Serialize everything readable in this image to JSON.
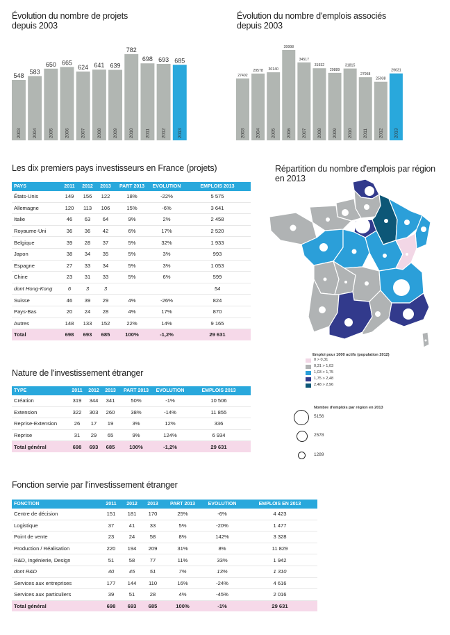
{
  "colors": {
    "bar": "#b1b6b2",
    "bar_highlight": "#29a8dc",
    "header": "#29a8dc",
    "total_row": "#f6d9e9",
    "map_cat0": "#f2d7e6",
    "map_cat1": "#b0b3b4",
    "map_cat2": "#2b9fd9",
    "map_cat3": "#323a8c",
    "map_cat4": "#0d5777"
  },
  "chart_data": [
    {
      "type": "bar",
      "title": "Évolution du nombre de projets depuis 2003",
      "categories": [
        "2003",
        "2004",
        "2005",
        "2006",
        "2007",
        "2008",
        "2009",
        "2010",
        "2011",
        "2012",
        "2013"
      ],
      "values": [
        548,
        583,
        650,
        665,
        624,
        641,
        639,
        782,
        698,
        693,
        685
      ],
      "labels": [
        "548",
        "583",
        "650",
        "665",
        "624",
        "641",
        "639",
        "782",
        "698",
        "693",
        "685"
      ],
      "highlight": "2013",
      "ylim": [
        0,
        800
      ]
    },
    {
      "type": "bar",
      "title": "Évolution du nombre d'emplois associés depuis 2003",
      "categories": [
        "2003",
        "2004",
        "2005",
        "2006",
        "2007",
        "2008",
        "2009",
        "2010",
        "2011",
        "2012",
        "2013"
      ],
      "values": [
        27402,
        29578,
        30140,
        39998,
        34517,
        31932,
        29889,
        31815,
        27958,
        25938,
        29631
      ],
      "labels": [
        "27402",
        "29578",
        "30140",
        "39998",
        "34517",
        "31932",
        "29889",
        "31815",
        "27958",
        "25938",
        "29631"
      ],
      "highlight": "2013",
      "ylim": [
        0,
        40000
      ]
    }
  ],
  "charts_titles": {
    "projects": [
      "Évolution du nombre de projets",
      "depuis 2003"
    ],
    "jobs": [
      "Évolution du nombre d'emplois associés",
      "depuis 2003"
    ]
  },
  "countries": {
    "title": "Les dix premiers pays investisseurs en France (projets)",
    "headers": [
      "PAYS",
      "2011",
      "2012",
      "2013",
      "PART 2013",
      "EVOLUTION",
      "EMPLOIS 2013"
    ],
    "rows": [
      [
        "États-Unis",
        "149",
        "156",
        "122",
        "18%",
        "-22%",
        "5 575"
      ],
      [
        "Allemagne",
        "120",
        "113",
        "106",
        "15%",
        "-6%",
        "3 641"
      ],
      [
        "Italie",
        "46",
        "63",
        "64",
        "9%",
        "2%",
        "2 458"
      ],
      [
        "Royaume-Uni",
        "36",
        "36",
        "42",
        "6%",
        "17%",
        "2 520"
      ],
      [
        "Belgique",
        "39",
        "28",
        "37",
        "5%",
        "32%",
        "1 933"
      ],
      [
        "Japon",
        "38",
        "34",
        "35",
        "5%",
        "3%",
        "993"
      ],
      [
        "Espagne",
        "27",
        "33",
        "34",
        "5%",
        "3%",
        "1 053"
      ],
      [
        "Chine",
        "23",
        "31",
        "33",
        "5%",
        "6%",
        "599"
      ],
      [
        "dont Hong-Kong",
        "6",
        "3",
        "3",
        "",
        "",
        "54"
      ],
      [
        "Suisse",
        "46",
        "39",
        "29",
        "4%",
        "-26%",
        "824"
      ],
      [
        "Pays-Bas",
        "20",
        "24",
        "28",
        "4%",
        "17%",
        "870"
      ],
      [
        "Autres",
        "148",
        "133",
        "152",
        "22%",
        "14%",
        "9 165"
      ],
      [
        "Total",
        "698",
        "693",
        "685",
        "100%",
        "-1,2%",
        "29 631"
      ]
    ]
  },
  "nature": {
    "title": "Nature de l'investissement étranger",
    "headers": [
      "TYPE",
      "2011",
      "2012",
      "2013",
      "PART 2013",
      "EVOLUTION",
      "EMPLOIS 2013"
    ],
    "rows": [
      [
        "Création",
        "319",
        "344",
        "341",
        "50%",
        "-1%",
        "10 506"
      ],
      [
        "Extension",
        "322",
        "303",
        "260",
        "38%",
        "-14%",
        "11 855"
      ],
      [
        "Reprise-Extension",
        "26",
        "17",
        "19",
        "3%",
        "12%",
        "336"
      ],
      [
        "Reprise",
        "31",
        "29",
        "65",
        "9%",
        "124%",
        "6 934"
      ],
      [
        "Total général",
        "698",
        "693",
        "685",
        "100%",
        "-1,2%",
        "29 631"
      ]
    ]
  },
  "fonction": {
    "title": "Fonction servie par l'investissement étranger",
    "headers": [
      "FONCTION",
      "2011",
      "2012",
      "2013",
      "PART 2013",
      "EVOLUTION",
      "EMPLOIS EN 2013"
    ],
    "rows": [
      [
        "Centre de décision",
        "151",
        "181",
        "170",
        "25%",
        "-6%",
        "4 423"
      ],
      [
        "Logistique",
        "37",
        "41",
        "33",
        "5%",
        "-20%",
        "1 477"
      ],
      [
        "Point de vente",
        "23",
        "24",
        "58",
        "8%",
        "142%",
        "3 328"
      ],
      [
        "Production / Réalisation",
        "220",
        "194",
        "209",
        "31%",
        "8%",
        "11 829"
      ],
      [
        "R&D, Ingénierie, Design",
        "51",
        "58",
        "77",
        "11%",
        "33%",
        "1 942"
      ],
      [
        "dont R&D",
        "40",
        "45",
        "51",
        "7%",
        "13%",
        "1 310"
      ],
      [
        "Services aux entreprises",
        "177",
        "144",
        "110",
        "16%",
        "-24%",
        "4 616"
      ],
      [
        "Services aux particuliers",
        "39",
        "51",
        "28",
        "4%",
        "-45%",
        "2 016"
      ],
      [
        "Total général",
        "698",
        "693",
        "685",
        "100%",
        "-1%",
        "29 631"
      ]
    ]
  },
  "map": {
    "title": [
      "Répartition du nombre d'emplois par région",
      "en 2013"
    ],
    "legend_title": "Emploi pour 1000 actifs (population 2012)",
    "legend_items": [
      "0 > 0,31",
      "0,31 > 1,03",
      "1,03 > 1,75",
      "1,75 > 2,48",
      "2,48 > 2,96"
    ],
    "circles_title": "Nombre d'emplois par région en 2013",
    "circles": [
      "5156",
      "2578",
      "1289"
    ]
  }
}
